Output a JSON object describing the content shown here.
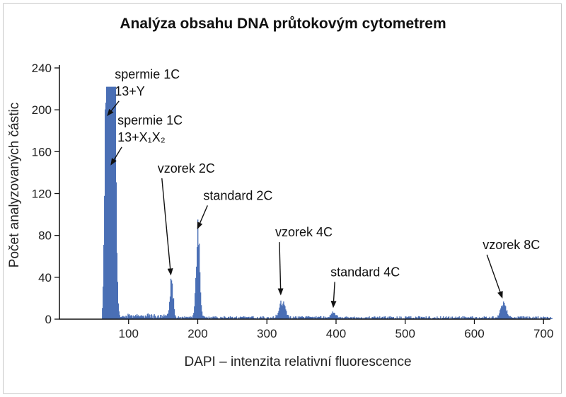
{
  "chart_data": {
    "type": "bar",
    "title": "Analýza obsahu DNA průtokovým cytometrem",
    "xlabel": "DAPI – intenzita relativní fluorescence",
    "ylabel": "Počet analyzovaných částic",
    "xlim": [
      0,
      710
    ],
    "ylim": [
      0,
      240
    ],
    "x_ticks": [
      100,
      200,
      300,
      400,
      500,
      600,
      700
    ],
    "y_ticks": [
      0,
      40,
      80,
      120,
      160,
      200,
      240
    ],
    "grid": false,
    "bar_color": "#4a6fb5",
    "baseline": 1.5,
    "noise_range": [
      62,
      712
    ],
    "peaks": [
      {
        "center": 70,
        "height": 215,
        "width": 3
      },
      {
        "center": 73,
        "height": 130,
        "width": 3
      },
      {
        "center": 77,
        "height": 150,
        "width": 2
      },
      {
        "center": 80,
        "height": 185,
        "width": 2.2
      },
      {
        "center": 66,
        "height": 90,
        "width": 1.5
      },
      {
        "center": 162,
        "height": 37,
        "width": 2.2
      },
      {
        "center": 200,
        "height": 82,
        "width": 2.5
      },
      {
        "center": 322,
        "height": 15,
        "width": 4
      },
      {
        "center": 396,
        "height": 4,
        "width": 4
      },
      {
        "center": 642,
        "height": 14,
        "width": 3.5
      }
    ],
    "annotations": [
      {
        "lines": [
          "spermie 1C",
          "13+Y"
        ],
        "text_x": 80,
        "text_y": 230,
        "target_x": 70,
        "target_y": 195
      },
      {
        "lines": [
          "spermie 1C",
          "13+X₁X₂"
        ],
        "text_x": 84,
        "text_y": 186,
        "target_x": 75,
        "target_y": 148
      },
      {
        "lines": [
          "vzorek 2C"
        ],
        "text_x": 142,
        "text_y": 140,
        "target_x": 161,
        "target_y": 43
      },
      {
        "lines": [
          "standard 2C"
        ],
        "text_x": 208,
        "text_y": 114,
        "target_x": 200,
        "target_y": 87
      },
      {
        "lines": [
          "vzorek 4C"
        ],
        "text_x": 312,
        "text_y": 79,
        "target_x": 320,
        "target_y": 24
      },
      {
        "lines": [
          "standard 4C"
        ],
        "text_x": 392,
        "text_y": 41,
        "target_x": 396,
        "target_y": 12
      },
      {
        "lines": [
          "vzorek 8C"
        ],
        "text_x": 612,
        "text_y": 67,
        "target_x": 640,
        "target_y": 21
      }
    ]
  }
}
